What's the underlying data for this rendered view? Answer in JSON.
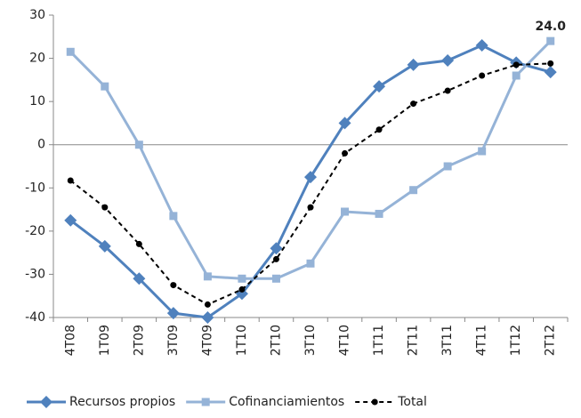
{
  "chart_data": {
    "type": "line",
    "categories": [
      "4T08",
      "1T09",
      "2T09",
      "3T09",
      "4T09",
      "1T10",
      "2T10",
      "3T10",
      "4T10",
      "1T11",
      "2T11",
      "3T11",
      "4T11",
      "1T12",
      "2T12"
    ],
    "series": [
      {
        "name": "Recursos propios",
        "color": "#4f81bd",
        "marker": "diamond",
        "dash": false,
        "values": [
          -17.5,
          -23.5,
          -31,
          -39,
          -40,
          -34.5,
          -24,
          -7.5,
          5,
          13.5,
          18.5,
          19.5,
          23,
          19,
          16.8
        ]
      },
      {
        "name": "Cofinanciamientos",
        "color": "#95b3d7",
        "marker": "square",
        "dash": false,
        "values": [
          21.5,
          13.5,
          0,
          -16.5,
          -30.5,
          -31,
          -31,
          -27.5,
          -15.5,
          -16,
          -10.5,
          -5,
          -1.5,
          16,
          24
        ],
        "value_labels": [
          null,
          null,
          null,
          null,
          null,
          null,
          null,
          null,
          null,
          null,
          null,
          null,
          null,
          null,
          "24.0"
        ]
      },
      {
        "name": "Total",
        "color": "#000000",
        "marker": "circle",
        "dash": true,
        "values": [
          -8.3,
          -14.5,
          -23,
          -32.5,
          -37,
          -33.5,
          -26.5,
          -14.5,
          -2,
          3.5,
          9.5,
          12.5,
          16,
          18.5,
          18.8
        ]
      }
    ],
    "ylim": [
      -40,
      30
    ],
    "yticks": [
      -40,
      -30,
      -20,
      -10,
      0,
      10,
      20,
      30
    ],
    "legend": "bottom"
  }
}
